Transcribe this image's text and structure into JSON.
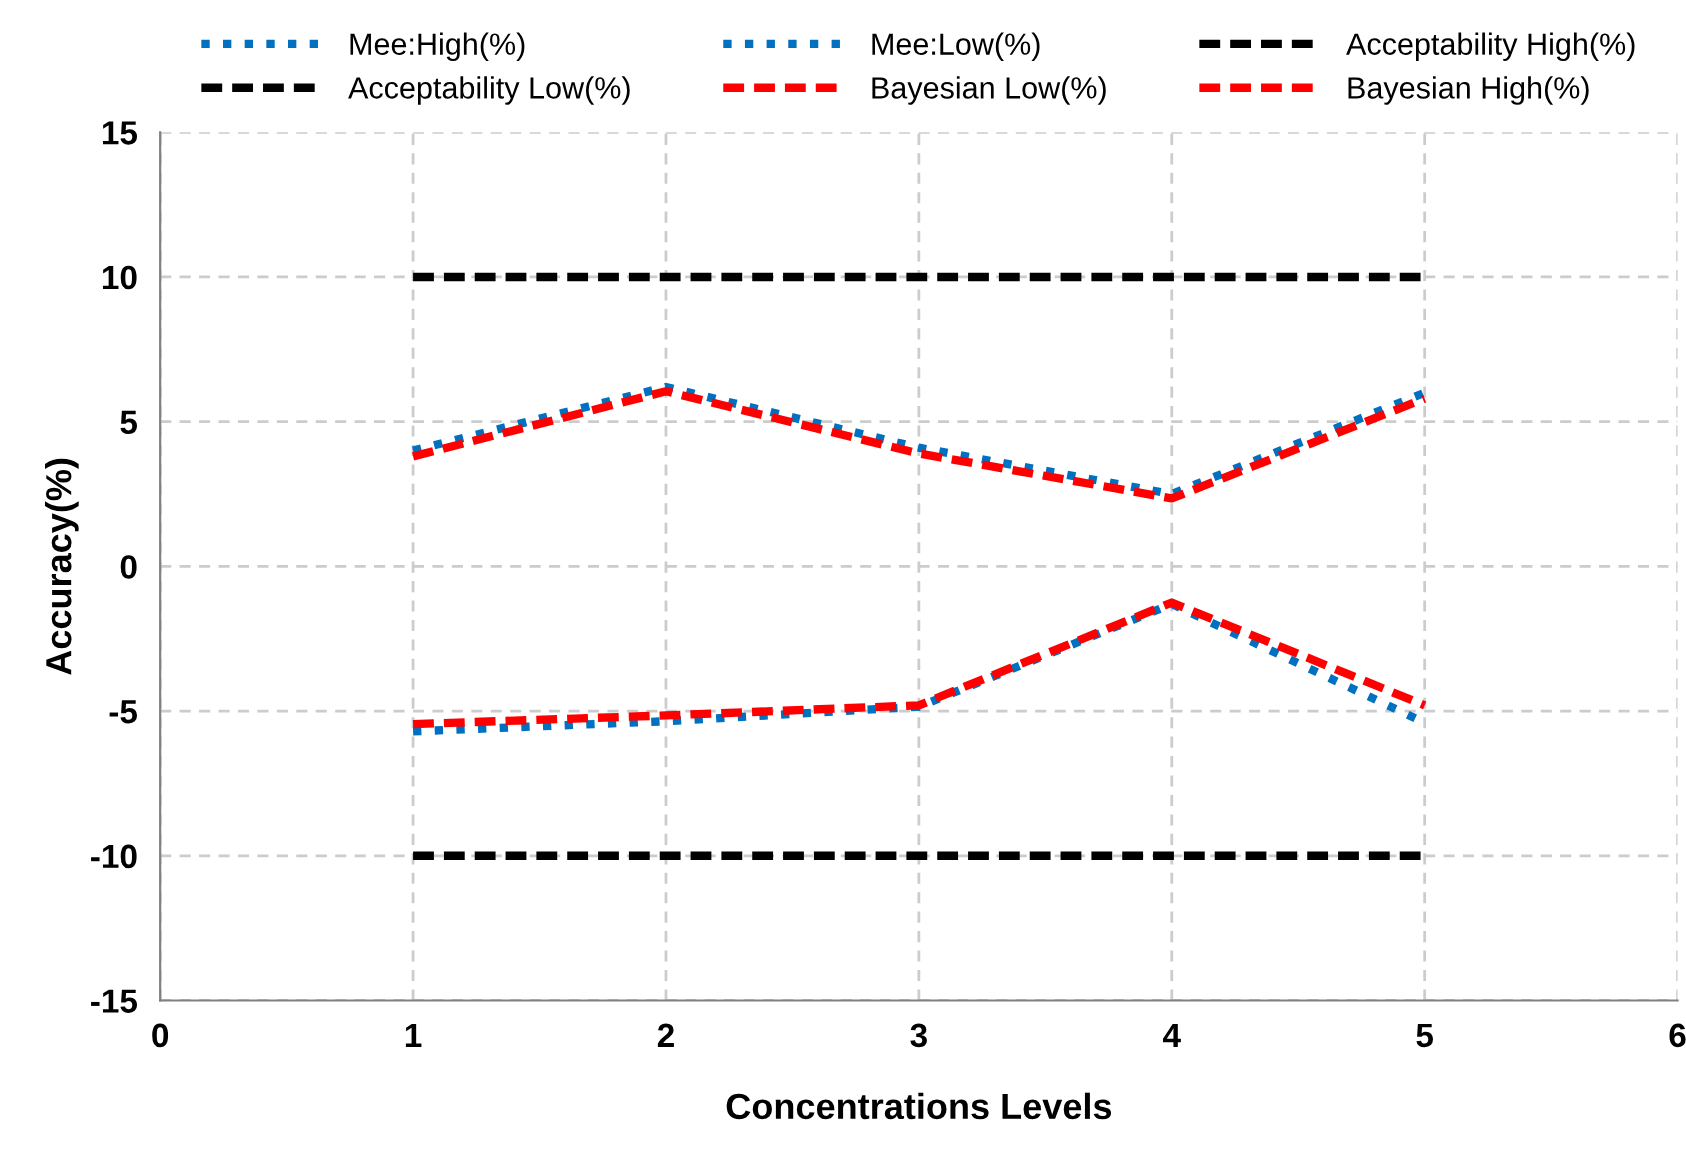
{
  "chart_data": {
    "type": "line",
    "xlabel": "Concentrations Levels",
    "ylabel": "Accuracy(%)",
    "x": [
      1,
      2,
      3,
      4,
      5
    ],
    "series": [
      {
        "name": "Mee:High(%)",
        "color": "#0070c0",
        "line_style": "dotted",
        "values": [
          4.0,
          6.2,
          4.1,
          2.5,
          6.0
        ]
      },
      {
        "name": "Mee:Low(%)",
        "color": "#0070c0",
        "line_style": "dotted",
        "values": [
          -5.7,
          -5.35,
          -4.85,
          -1.3,
          -5.4
        ]
      },
      {
        "name": "Acceptability High(%)",
        "color": "#000000",
        "line_style": "dashed",
        "values": [
          10,
          10,
          10,
          10,
          10
        ]
      },
      {
        "name": "Acceptability Low(%)",
        "color": "#000000",
        "line_style": "dashed",
        "values": [
          -10,
          -10,
          -10,
          -10,
          -10
        ]
      },
      {
        "name": "Bayesian Low(%)",
        "color": "#ff0000",
        "line_style": "dashed",
        "values": [
          -5.45,
          -5.15,
          -4.8,
          -1.25,
          -4.8
        ]
      },
      {
        "name": "Bayesian High(%)",
        "color": "#ff0000",
        "line_style": "dashed",
        "values": [
          3.8,
          6.05,
          3.9,
          2.35,
          5.8
        ]
      }
    ],
    "xlim": [
      0,
      6
    ],
    "xticks": [
      0,
      1,
      2,
      3,
      4,
      5,
      6
    ],
    "ylim": [
      -15,
      15
    ],
    "yticks": [
      -15,
      -10,
      -5,
      0,
      5,
      10,
      15
    ],
    "grid": true,
    "legend": "top",
    "marker": "none"
  }
}
